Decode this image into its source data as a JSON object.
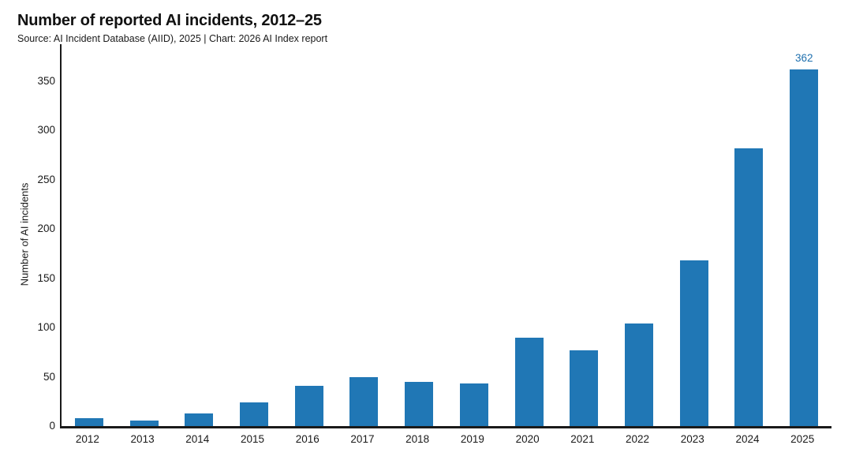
{
  "header": {
    "title": "Number of reported AI incidents, 2012–25",
    "source": "Source: AI Incident Database (AIID), 2025 | Chart: 2026 AI Index report"
  },
  "chart_data": {
    "type": "bar",
    "title": "Number of reported AI incidents, 2012–25",
    "categories": [
      "2012",
      "2013",
      "2014",
      "2015",
      "2016",
      "2017",
      "2018",
      "2019",
      "2020",
      "2021",
      "2022",
      "2023",
      "2024",
      "2025"
    ],
    "values": [
      8,
      6,
      13,
      24,
      41,
      50,
      45,
      43,
      90,
      77,
      104,
      168,
      282,
      362
    ],
    "xlabel": "",
    "ylabel": "Number of AI incidents",
    "ylim": [
      0,
      387
    ],
    "yticks": [
      0,
      50,
      100,
      150,
      200,
      250,
      300,
      350
    ],
    "grid": false,
    "legend": "none",
    "value_labels": {
      "2025": "362"
    }
  },
  "colors": {
    "bar": "#2077b5",
    "value_label": "#1d6fae",
    "axis": "#1a1a1a",
    "text": "#1a1a1a",
    "background": "#ffffff"
  }
}
